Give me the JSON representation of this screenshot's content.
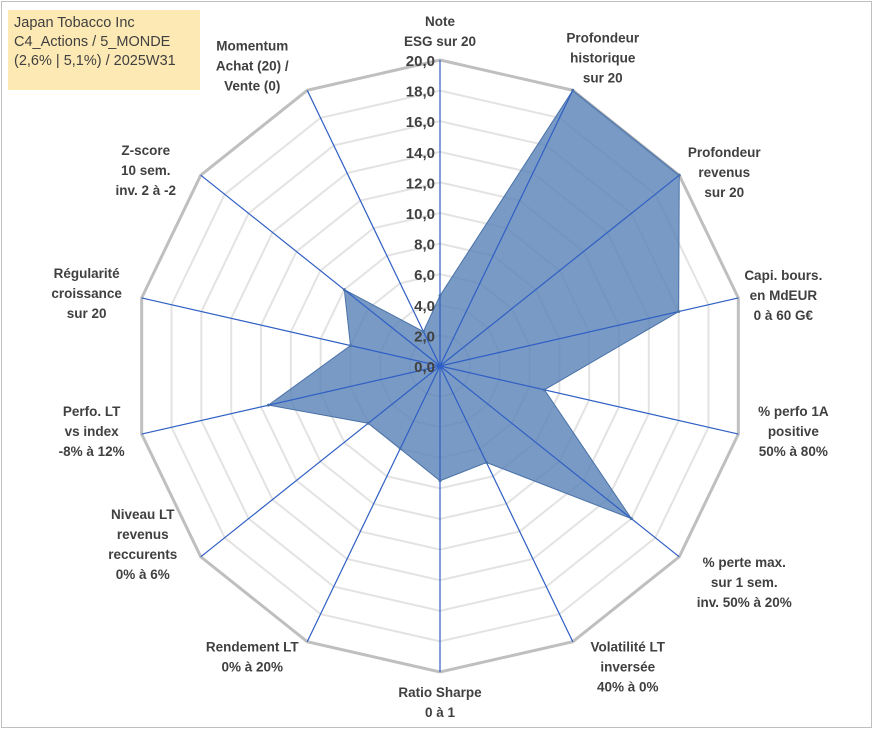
{
  "info": {
    "line1": "Japan Tobacco Inc",
    "line2": "C4_Actions / 5_MONDE",
    "line3": "(2,6% | 5,1%) / 2025W31"
  },
  "colors": {
    "fill": "#5b84b8",
    "stroke": "#4a72a8",
    "radial": "#2f5fc4",
    "grid_outer": "#bfbfbf",
    "grid_inner": "#e3e3e3",
    "box": "#fde9b4"
  },
  "chart_data": {
    "type": "radar",
    "min": 0,
    "max": 20,
    "step": 2,
    "tick_labels": [
      "0,0",
      "2,0",
      "4,0",
      "6,0",
      "8,0",
      "10,0",
      "12,0",
      "14,0",
      "16,0",
      "18,0",
      "20,0"
    ],
    "axes": [
      {
        "label": [
          "Note",
          "ESG sur 20"
        ],
        "value": 4.6
      },
      {
        "label": [
          "Profondeur",
          "historique",
          "sur 20"
        ],
        "value": 20
      },
      {
        "label": [
          "Profondeur",
          "revenus",
          "sur 20"
        ],
        "value": 20
      },
      {
        "label": [
          "Capi. bours.",
          "en MdEUR",
          "0 à 60 G€"
        ],
        "value": 16
      },
      {
        "label": [
          "% perfo 1A",
          "positive",
          "50% à 80%"
        ],
        "value": 7
      },
      {
        "label": [
          "% perte max.",
          "sur 1 sem.",
          "inv. 50% à 20%"
        ],
        "value": 16
      },
      {
        "label": [
          "Volatilité LT",
          "inversée",
          "40% à 0%"
        ],
        "value": 7
      },
      {
        "label": [
          "Ratio Sharpe",
          "0 à 1"
        ],
        "value": 7.5
      },
      {
        "label": [
          "Rendement LT",
          "0% à 20%"
        ],
        "value": 6
      },
      {
        "label": [
          "Niveau LT",
          "revenus",
          "reccurents",
          "0% à 6%"
        ],
        "value": 6
      },
      {
        "label": [
          "Perfo. LT",
          "vs index",
          "-8% à 12%"
        ],
        "value": 11.5
      },
      {
        "label": [
          "Régularité",
          "croissance",
          "sur 20"
        ],
        "value": 6
      },
      {
        "label": [
          "Z-score",
          "10 sem.",
          "inv. 2 à -2"
        ],
        "value": 8
      },
      {
        "label": [
          "Momentum",
          "Achat (20) /",
          "Vente (0)"
        ],
        "value": 2.5
      }
    ]
  }
}
